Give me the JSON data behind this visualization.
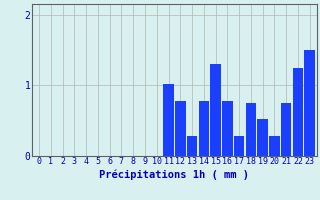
{
  "categories": [
    0,
    1,
    2,
    3,
    4,
    5,
    6,
    7,
    8,
    9,
    10,
    11,
    12,
    13,
    14,
    15,
    16,
    17,
    18,
    19,
    20,
    21,
    22,
    23
  ],
  "values": [
    0,
    0,
    0,
    0,
    0,
    0,
    0,
    0,
    0,
    0,
    0,
    1.02,
    0.78,
    0.28,
    0.78,
    1.3,
    0.78,
    0.28,
    0.75,
    0.52,
    0.28,
    0.75,
    1.25,
    1.5
  ],
  "bar_color": "#1a3fff",
  "background_color": "#d8f0f0",
  "grid_color": "#b0b8b0",
  "axis_color": "#606060",
  "text_color": "#0000bb",
  "xlabel": "Précipitations 1h ( mm )",
  "ylim": [
    0,
    2.15
  ],
  "yticks": [
    0,
    1,
    2
  ],
  "tick_fontsize": 6.0,
  "label_fontsize": 7.5
}
